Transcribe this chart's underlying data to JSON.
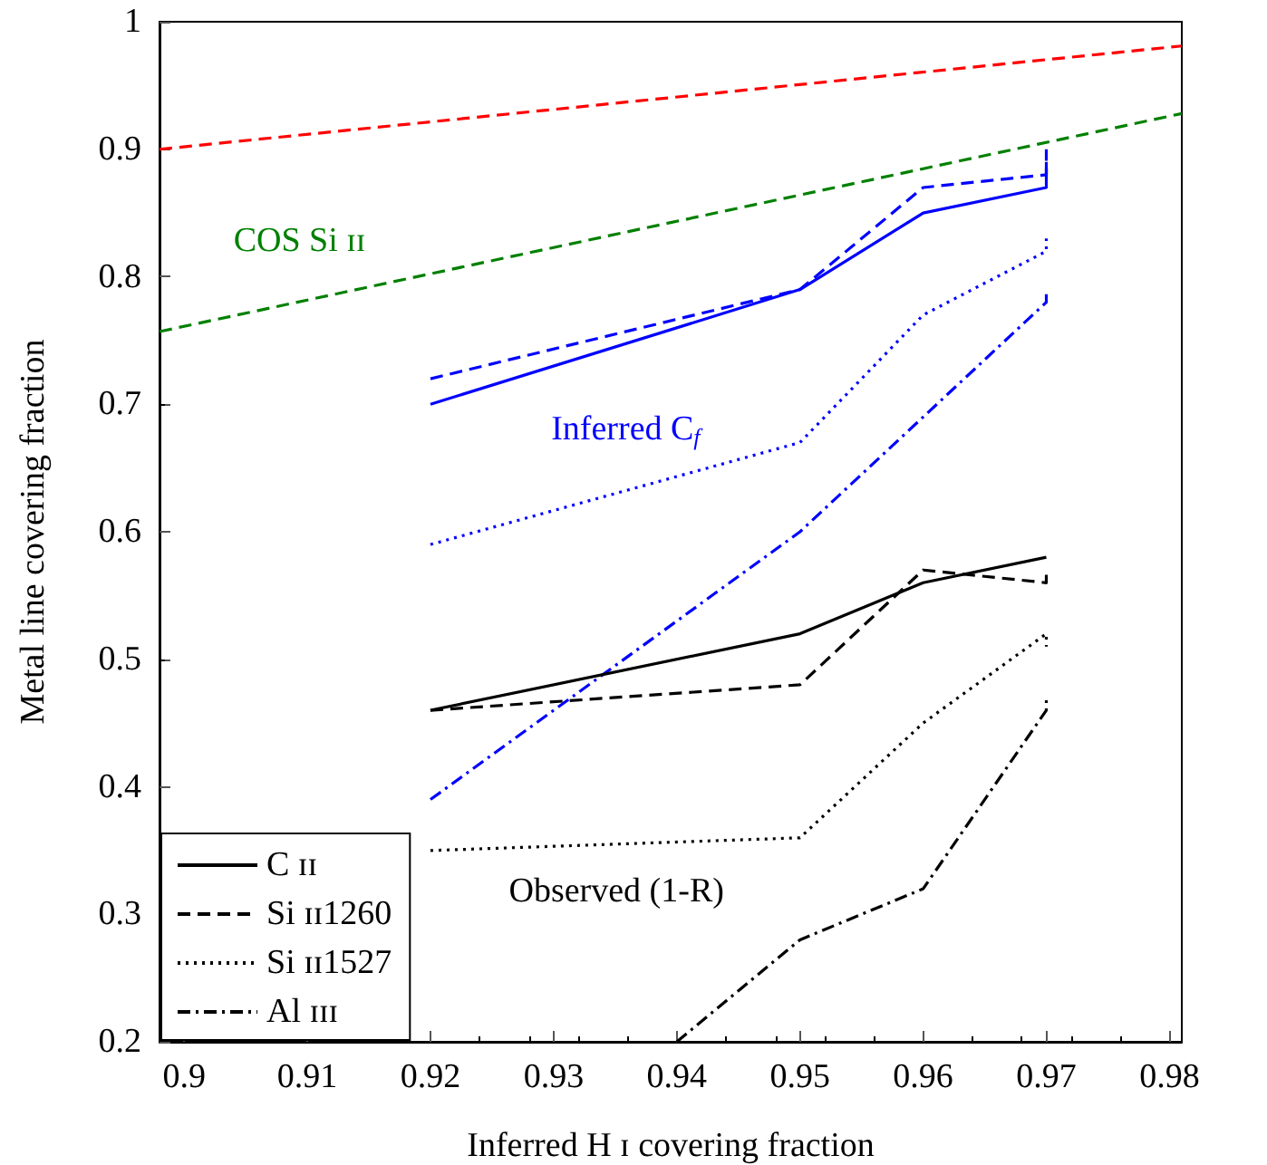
{
  "chart_data": {
    "type": "line",
    "xlabel": "Inferred H ɪ covering fraction",
    "ylabel": "Metal line covering fraction",
    "xlim": [
      0.898,
      0.981
    ],
    "ylim": [
      0.2,
      1
    ],
    "xticks": [
      0.9,
      0.91,
      0.92,
      0.93,
      0.94,
      0.95,
      0.96,
      0.97,
      0.98
    ],
    "yticks": [
      0.2,
      0.3,
      0.4,
      0.5,
      0.6,
      0.7,
      0.8,
      0.9,
      1
    ],
    "grid": false,
    "legend": "bottom left",
    "marker": "none",
    "series": [
      {
        "color": "#ff0000",
        "line_style": "dashed",
        "x": [
          0.898,
          0.981
        ],
        "values": [
          0.9,
          0.981
        ]
      },
      {
        "color": "#008000",
        "line_style": "dashed",
        "x": [
          0.898,
          0.981
        ],
        "values": [
          0.757,
          0.928
        ]
      },
      {
        "color": "#0000ff",
        "line_style": "solid",
        "x": [
          0.92,
          0.95,
          0.96,
          0.97,
          0.97
        ],
        "values": [
          0.7,
          0.79,
          0.85,
          0.87,
          0.89
        ]
      },
      {
        "color": "#0000ff",
        "line_style": "dashed",
        "x": [
          0.92,
          0.95,
          0.96,
          0.97,
          0.97
        ],
        "values": [
          0.72,
          0.79,
          0.87,
          0.88,
          0.9
        ]
      },
      {
        "color": "#0000ff",
        "line_style": "dotted",
        "x": [
          0.92,
          0.95,
          0.96,
          0.97,
          0.97
        ],
        "values": [
          0.59,
          0.67,
          0.77,
          0.82,
          0.83
        ]
      },
      {
        "color": "#0000ff",
        "line_style": "dashdot",
        "x": [
          0.92,
          0.95,
          0.96,
          0.97,
          0.97
        ],
        "values": [
          0.39,
          0.6,
          0.69,
          0.78,
          0.79
        ]
      },
      {
        "name": "C ɪɪ",
        "color": "#000000",
        "line_style": "solid",
        "x": [
          0.92,
          0.95,
          0.96,
          0.97
        ],
        "values": [
          0.46,
          0.52,
          0.56,
          0.58
        ]
      },
      {
        "name": "Si ɪɪ1260",
        "color": "#000000",
        "line_style": "dashed",
        "x": [
          0.92,
          0.95,
          0.96,
          0.97,
          0.97
        ],
        "values": [
          0.46,
          0.48,
          0.57,
          0.56,
          0.57
        ]
      },
      {
        "name": "Si ɪɪ1527",
        "color": "#000000",
        "line_style": "dotted",
        "x": [
          0.92,
          0.95,
          0.96,
          0.97,
          0.97
        ],
        "values": [
          0.35,
          0.36,
          0.45,
          0.52,
          0.51
        ]
      },
      {
        "name": "Al ɪɪɪ",
        "color": "#000000",
        "line_style": "dashdot",
        "x": [
          0.94,
          0.95,
          0.96,
          0.97,
          0.97
        ],
        "values": [
          0.2,
          0.28,
          0.32,
          0.46,
          0.47
        ]
      }
    ],
    "annotations": [
      "COS Si ɪɪ",
      "Inferred C$_{f}$",
      "Observed (1-R)"
    ]
  }
}
